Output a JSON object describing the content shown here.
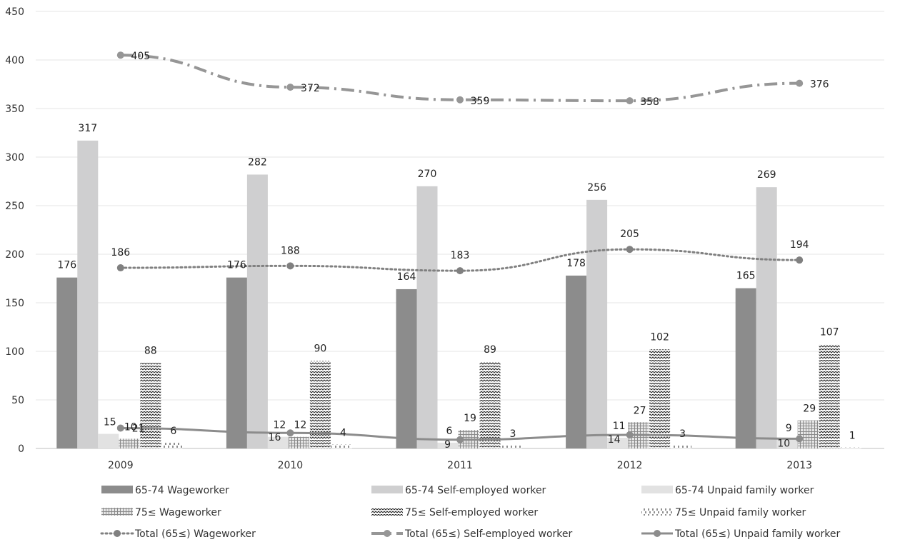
{
  "chart_data": {
    "type": "bar",
    "categories": [
      "2009",
      "2010",
      "2011",
      "2012",
      "2013"
    ],
    "ylim": [
      0,
      450
    ],
    "yticks": [
      0,
      50,
      100,
      150,
      200,
      250,
      300,
      350,
      400,
      450
    ],
    "grid": true,
    "legend_position": "bottom",
    "bar_series": [
      {
        "name": "65-74 Wageworker",
        "values": [
          176,
          176,
          164,
          178,
          165
        ],
        "color": "#8c8c8c",
        "pattern": "solid-dark"
      },
      {
        "name": "65-74 Self-employed worker",
        "values": [
          317,
          282,
          270,
          256,
          269
        ],
        "color": "#cfcfd0",
        "pattern": "solid-light"
      },
      {
        "name": "65-74 Unpaid family worker",
        "values": [
          15,
          12,
          6,
          11,
          9
        ],
        "color": "#e2e2e2",
        "pattern": "solid-pale"
      },
      {
        "name": "75≤ Wageworker",
        "values": [
          10,
          12,
          19,
          27,
          29
        ],
        "color": "#a8a8a8",
        "pattern": "grid"
      },
      {
        "name": "75≤ Self-employed worker",
        "values": [
          88,
          90,
          89,
          102,
          107
        ],
        "color": "#222222",
        "pattern": "zigzag"
      },
      {
        "name": "75≤ Unpaid family worker",
        "values": [
          6,
          4,
          3,
          3,
          1
        ],
        "color": "#222222",
        "pattern": "ticks"
      }
    ],
    "line_series": [
      {
        "name": "Total (65≤) Wageworker",
        "values": [
          186,
          188,
          183,
          205,
          194
        ],
        "color": "#808080",
        "style": "dotted"
      },
      {
        "name": "Total (65≤) Self-employed worker",
        "values": [
          405,
          372,
          359,
          358,
          376
        ],
        "color": "#969696",
        "style": "dash-dot"
      },
      {
        "name": "Total (65≤) Unpaid family worker",
        "values": [
          21,
          16,
          9,
          14,
          10
        ],
        "color": "#8c8c8c",
        "style": "solid"
      }
    ]
  }
}
